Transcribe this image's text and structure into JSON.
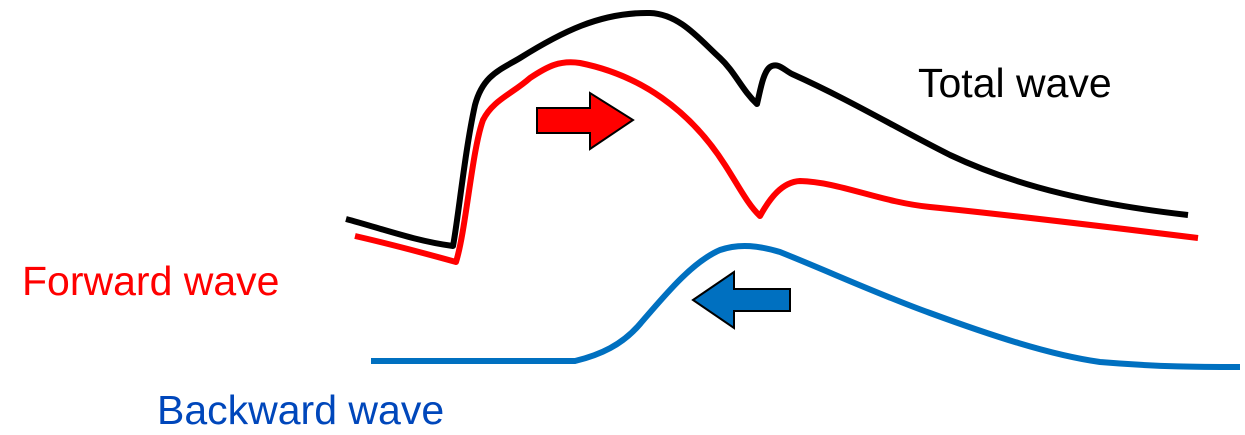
{
  "labels": {
    "total": "Total wave",
    "forward": "Forward wave",
    "backward": "Backward wave"
  },
  "colors": {
    "total": "#000000",
    "forward": "#ff0000",
    "backward": "#0070c0",
    "backward_label": "#0047bb",
    "arrow_outline": "#000000"
  }
}
